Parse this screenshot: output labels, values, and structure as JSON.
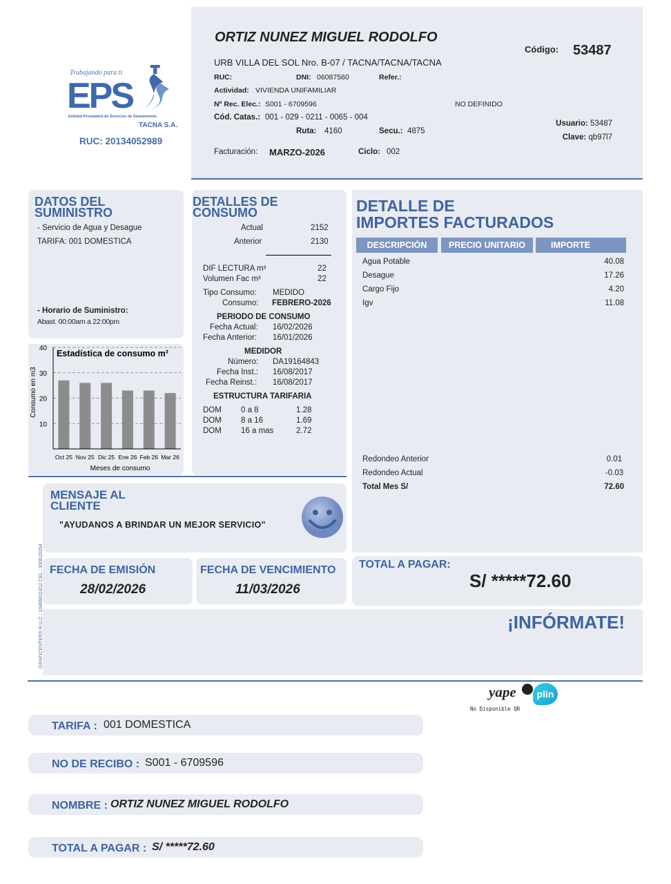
{
  "logo": {
    "tagline": "Trabajando para ti",
    "brand": "EPS",
    "entity": "Entidad Prestadora de Servicios de Saneamiento",
    "company": "TACNA S.A.",
    "ruc": "RUC: 20134052989"
  },
  "header": {
    "name": "ORTIZ NUNEZ MIGUEL RODOLFO",
    "codigo_label": "Código:",
    "codigo": "53487",
    "address": "URB VILLA DEL SOL Nro. B-07 / TACNA/TACNA/TACNA",
    "ruc_label": "RUC:",
    "dni_label": "DNI:",
    "dni": "06087560",
    "refer_label": "Refer.:",
    "actividad_label": "Actividad:",
    "actividad": "VIVIENDA UNIFAMILIAR",
    "rec_label": "Nº Rec. Elec.:",
    "rec": "S001 - 6709596",
    "no_definido": "NO DEFINIDO",
    "catas_label": "Cód. Catas.:",
    "catas": "001 - 029 - 0211 - 0065 - 004",
    "ruta_label": "Ruta:",
    "ruta": "4160",
    "secu_label": "Secu.:",
    "secu": "4875",
    "usuario_label": "Usuario:",
    "usuario": "53487",
    "clave_label": "Clave:",
    "clave": "qb97l7",
    "fact_label": "Facturación:",
    "fact": "MARZO-2026",
    "ciclo_label": "Ciclo:",
    "ciclo": "002"
  },
  "suministro": {
    "title1": "DATOS DEL",
    "title2": "SUMINISTRO",
    "servicio": "- Servicio de Agua y Desague",
    "tarifa": "TARIFA: 001 DOMESTICA",
    "horario_label": "- Horario de Suministro:",
    "horario": "Abast. 00:00am a 22:00pm"
  },
  "chart_data": {
    "type": "bar",
    "title": "Estadística de consumo m³",
    "ylabel": "Consumo en m3",
    "xlabel": "Meses de consumo",
    "categories": [
      "Oct 25",
      "Nov 25",
      "Dic 25",
      "Ene 26",
      "Feb 26",
      "Mar 26"
    ],
    "values": [
      27,
      26,
      26,
      23,
      23,
      22
    ],
    "ylim": [
      0,
      40
    ],
    "yticks": [
      10,
      20,
      30,
      40
    ],
    "grid": true,
    "bar_color": "#8c8c8c"
  },
  "consumo": {
    "title1": "DETALLES DE",
    "title2": "CONSUMO",
    "actual_label": "Actual",
    "actual": "2152",
    "anterior_label": "Anterior",
    "anterior": "2130",
    "dif_label": "DIF LECTURA m³",
    "dif": "22",
    "vol_label": "Volumen Fac m³",
    "vol": "22",
    "tipo_label": "Tipo Consumo:",
    "tipo": "MEDIDO",
    "cons_label": "Consumo:",
    "cons": "FEBRERO-2026",
    "periodo_title": "PERIODO DE CONSUMO",
    "fa_label": "Fecha Actual:",
    "fa": "16/02/2026",
    "fant_label": "Fecha Anterior:",
    "fant": "16/01/2026",
    "medidor_title": "MEDIDOR",
    "num_label": "Número:",
    "num": "DA19164843",
    "finst_label": "Fecha Inst.:",
    "finst": "16/08/2017",
    "freinst_label": "Fecha Reinst.:",
    "freinst": "16/08/2017",
    "estructura_title": "ESTRUCTURA TARIFARIA",
    "tarifas": [
      [
        "DOM",
        "0 a 8",
        "1.28"
      ],
      [
        "DOM",
        "8 a 16",
        "1.69"
      ],
      [
        "DOM",
        "16 a mas",
        "2.72"
      ]
    ]
  },
  "importes": {
    "title1": "DETALLE DE",
    "title2": "IMPORTES FACTURADOS",
    "headers": [
      "DESCRIPCIÓN",
      "PRECIO UNITARIO",
      "IMPORTE"
    ],
    "items": [
      [
        "Agua Potable",
        "40.08"
      ],
      [
        "Desague",
        "17.26"
      ],
      [
        "Cargo Fijo",
        "4.20"
      ],
      [
        "Igv",
        "11.08"
      ]
    ],
    "red_ant_label": "Redondeo Anterior",
    "red_ant": "0.01",
    "red_act_label": "Redondeo Actual",
    "red_act": "-0.03",
    "total_label": "Total Mes S/",
    "total": "72.60"
  },
  "mensaje": {
    "title1": "MENSAJE AL",
    "title2": "CLIENTE",
    "text": "\"AYUDANOS A BRINDAR UN MEJOR SERVICIO\""
  },
  "fechas": {
    "emision_label": "FECHA DE EMISIÓN",
    "emision": "28/02/2026",
    "venc_label": "FECHA DE VENCIMIENTO",
    "venc": "11/03/2026"
  },
  "total": {
    "label": "TOTAL A PAGAR:",
    "value": "S/ *****72.60"
  },
  "informate": "¡INFÓRMATE!",
  "printer": "GRAFICENTERS R.U.C.: 10406611812 CEL.: 950615354",
  "payment": {
    "yape": "yape",
    "plin": "plin",
    "qr_note": "No Disponible QR"
  },
  "summary": [
    {
      "label": "TARIFA :",
      "value": "001 DOMESTICA"
    },
    {
      "label": "NO DE RECIBO :",
      "value": "S001 - 6709596"
    },
    {
      "label": "NOMBRE :",
      "value": "ORTIZ NUNEZ MIGUEL RODOLFO"
    },
    {
      "label": "TOTAL A PAGAR :",
      "value": "S/ *****72.60"
    }
  ],
  "colors": {
    "accent": "#3e64a0",
    "panel": "#e8ebf2",
    "table_header": "#7d95c1"
  }
}
